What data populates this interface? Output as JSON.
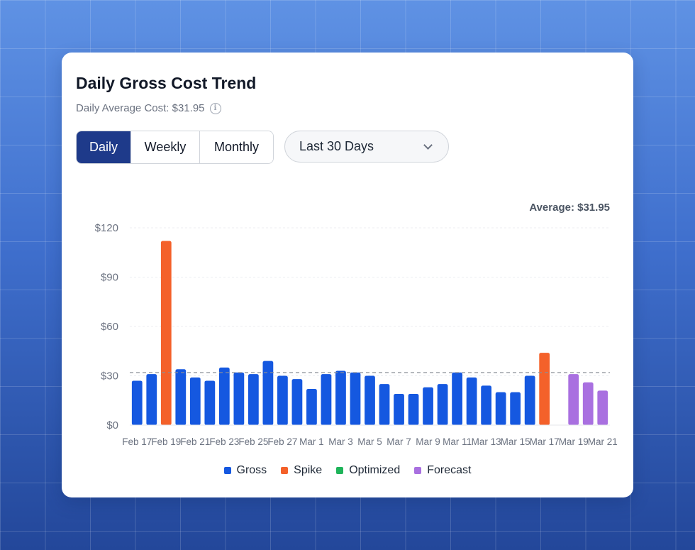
{
  "header": {
    "title": "Daily Gross Cost Trend",
    "subtitle": "Daily Average Cost: $31.95"
  },
  "icons": {
    "info": "info-icon",
    "dropdown": "chevron-down-icon"
  },
  "controls": {
    "tabs": [
      {
        "label": "Daily",
        "active": true
      },
      {
        "label": "Weekly",
        "active": false
      },
      {
        "label": "Monthly",
        "active": false
      }
    ],
    "range_select": "Last 30 Days"
  },
  "colors": {
    "gross": "#1558e0",
    "spike": "#f4612a",
    "optimized": "#1fb45a",
    "forecast": "#a970e0",
    "active_tab": "#1e3a8a"
  },
  "chart_data": {
    "type": "bar",
    "average": 31.95,
    "average_label": "Average: $31.95",
    "ylim": [
      0,
      120
    ],
    "yticks": [
      0,
      30,
      60,
      90,
      120
    ],
    "ytick_labels": [
      "$0",
      "$30",
      "$60",
      "$90",
      "$120"
    ],
    "xtick_labels": [
      "Feb 17",
      "Feb 19",
      "Feb 21",
      "Feb 23",
      "Feb 25",
      "Feb 27",
      "Mar 1",
      "Mar 3",
      "Mar 5",
      "Mar 7",
      "Mar 9",
      "Mar 11",
      "Mar 13",
      "Mar 15",
      "Mar 17",
      "Mar 19",
      "Mar 21"
    ],
    "categories": [
      "Feb 17",
      "Feb 18",
      "Feb 19",
      "Feb 20",
      "Feb 21",
      "Feb 22",
      "Feb 23",
      "Feb 24",
      "Feb 25",
      "Feb 26",
      "Feb 27",
      "Feb 28",
      "Mar 1",
      "Mar 2",
      "Mar 3",
      "Mar 4",
      "Mar 5",
      "Mar 6",
      "Mar 7",
      "Mar 8",
      "Mar 9",
      "Mar 10",
      "Mar 11",
      "Mar 12",
      "Mar 13",
      "Mar 14",
      "Mar 15",
      "Mar 16",
      "Mar 17",
      "Mar 18",
      "Mar 19",
      "Mar 20",
      "Mar 21"
    ],
    "values": [
      27,
      31,
      112,
      34,
      29,
      27,
      35,
      32,
      31,
      39,
      30,
      28,
      22,
      31,
      33,
      32,
      30,
      25,
      19,
      19,
      23,
      25,
      32,
      29,
      24,
      20,
      20,
      30,
      44,
      null,
      31,
      26,
      21
    ],
    "kinds": [
      "gross",
      "gross",
      "spike",
      "gross",
      "gross",
      "gross",
      "gross",
      "gross",
      "gross",
      "gross",
      "gross",
      "gross",
      "gross",
      "gross",
      "gross",
      "gross",
      "gross",
      "gross",
      "gross",
      "gross",
      "gross",
      "gross",
      "gross",
      "gross",
      "gross",
      "gross",
      "gross",
      "gross",
      "spike",
      null,
      "forecast",
      "forecast",
      "forecast"
    ],
    "legend": [
      {
        "label": "Gross",
        "key": "gross"
      },
      {
        "label": "Spike",
        "key": "spike"
      },
      {
        "label": "Optimized",
        "key": "optimized"
      },
      {
        "label": "Forecast",
        "key": "forecast"
      }
    ],
    "grid": true
  }
}
